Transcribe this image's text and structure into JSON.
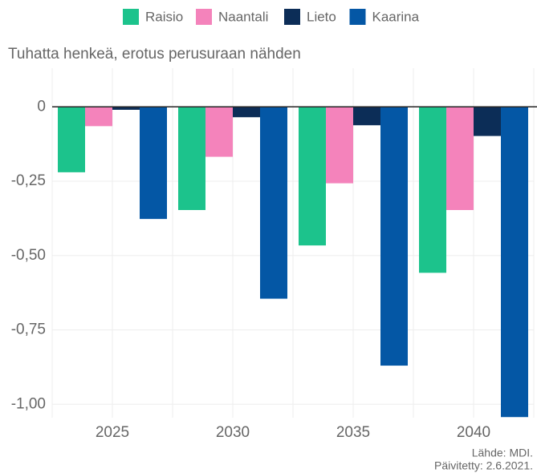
{
  "chart_data": {
    "type": "bar",
    "title": "Tuhatta henkeä, erotus perusuraan nähden",
    "categories": [
      "2025",
      "2030",
      "2035",
      "2040"
    ],
    "series": [
      {
        "name": "Raisio",
        "color": "#1cc38c",
        "values": [
          -0.22,
          -0.347,
          -0.466,
          -0.558
        ]
      },
      {
        "name": "Naantali",
        "color": "#f483bb",
        "values": [
          -0.065,
          -0.168,
          -0.257,
          -0.347
        ]
      },
      {
        "name": "Lieto",
        "color": "#0c2d57",
        "values": [
          -0.01,
          -0.035,
          -0.062,
          -0.098
        ]
      },
      {
        "name": "Kaarina",
        "color": "#0457a5",
        "values": [
          -0.377,
          -0.645,
          -0.87,
          -1.043
        ]
      }
    ],
    "ylim": [
      -1.045,
      0.13
    ],
    "yticks": [
      0,
      {
        "value": -0.25,
        "label": "-0,25"
      },
      {
        "value": -0.5,
        "label": "-0,50"
      },
      {
        "value": -0.75,
        "label": "-0,75"
      },
      {
        "value": -1,
        "label": "-1,00"
      }
    ],
    "grid": true,
    "legend": "top",
    "source": "Lähde: MDI.",
    "updated": "Päivitetty: 2.6.2021."
  }
}
